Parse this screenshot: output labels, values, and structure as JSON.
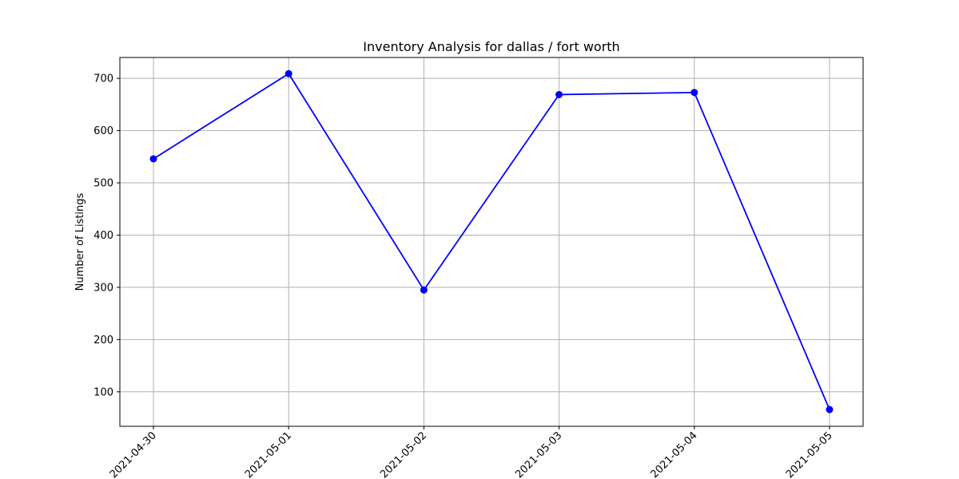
{
  "chart_data": {
    "type": "line",
    "title": "Inventory Analysis for dallas / fort worth",
    "xlabel": "",
    "ylabel": "Number of Listings",
    "x": [
      "2021-04-30",
      "2021-05-01",
      "2021-05-02",
      "2021-05-03",
      "2021-05-04",
      "2021-05-05"
    ],
    "series": [
      {
        "values": [
          546,
          709,
          295,
          669,
          673,
          66
        ],
        "color": "#0000ff",
        "marker": "circle"
      }
    ],
    "yticks": [
      100,
      200,
      300,
      400,
      500,
      600,
      700
    ],
    "ylim": [
      34,
      740
    ],
    "grid": true,
    "colors": {
      "grid": "#b0b0b0",
      "axes": "#000000",
      "line": "#0000ff"
    }
  }
}
